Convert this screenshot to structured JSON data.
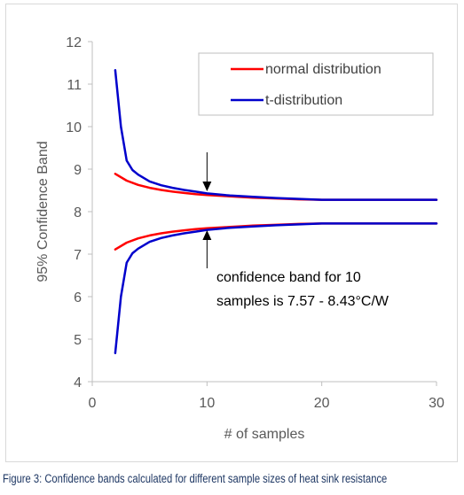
{
  "caption": "Figure 3: Confidence bands calculated for different sample sizes of heat sink resistance",
  "chart_data": {
    "type": "line",
    "xlabel": "# of samples",
    "ylabel": "95% Confidence Band",
    "xlim": [
      0,
      30
    ],
    "ylim": [
      4,
      12
    ],
    "x_ticks": [
      0,
      10,
      20,
      30
    ],
    "y_ticks": [
      4,
      5,
      6,
      7,
      8,
      9,
      10,
      11,
      12
    ],
    "grid": false,
    "legend_position": "top-right",
    "series": [
      {
        "name": "normal distribution",
        "color": "#ff0000",
        "upper": {
          "x": [
            2,
            3,
            4,
            5,
            6,
            7,
            8,
            9,
            10,
            12,
            14,
            16,
            18,
            20,
            22,
            24,
            26,
            28,
            30
          ],
          "y": [
            8.89,
            8.73,
            8.63,
            8.56,
            8.51,
            8.47,
            8.44,
            8.41,
            8.39,
            8.36,
            8.33,
            8.31,
            8.29,
            8.28,
            8.28,
            8.28,
            8.28,
            8.28,
            8.28
          ]
        },
        "lower": {
          "x": [
            2,
            3,
            4,
            5,
            6,
            7,
            8,
            9,
            10,
            12,
            14,
            16,
            18,
            20,
            22,
            24,
            26,
            28,
            30
          ],
          "y": [
            7.11,
            7.27,
            7.37,
            7.44,
            7.49,
            7.53,
            7.56,
            7.59,
            7.61,
            7.64,
            7.67,
            7.69,
            7.71,
            7.72,
            7.72,
            7.72,
            7.72,
            7.72,
            7.72
          ]
        }
      },
      {
        "name": "t-distribution",
        "color": "#0000cc",
        "upper": {
          "x": [
            2,
            2.5,
            3,
            3.5,
            4,
            5,
            6,
            7,
            8,
            9,
            10,
            12,
            14,
            16,
            18,
            20,
            22,
            24,
            26,
            28,
            30
          ],
          "y": [
            11.33,
            10.0,
            9.2,
            8.98,
            8.87,
            8.71,
            8.62,
            8.56,
            8.51,
            8.47,
            8.43,
            8.38,
            8.35,
            8.32,
            8.3,
            8.28,
            8.28,
            8.28,
            8.28,
            8.28,
            8.28
          ]
        },
        "lower": {
          "x": [
            2,
            2.5,
            3,
            3.5,
            4,
            5,
            6,
            7,
            8,
            9,
            10,
            12,
            14,
            16,
            18,
            20,
            22,
            24,
            26,
            28,
            30
          ],
          "y": [
            4.67,
            6.0,
            6.8,
            7.02,
            7.13,
            7.29,
            7.38,
            7.44,
            7.49,
            7.53,
            7.57,
            7.62,
            7.65,
            7.68,
            7.7,
            7.72,
            7.72,
            7.72,
            7.72,
            7.72,
            7.72
          ]
        }
      }
    ],
    "annotations": [
      {
        "lines": [
          "confidence band for 10",
          "samples is 7.57 - 8.43°C/W"
        ],
        "arrow_x": 10
      }
    ]
  }
}
